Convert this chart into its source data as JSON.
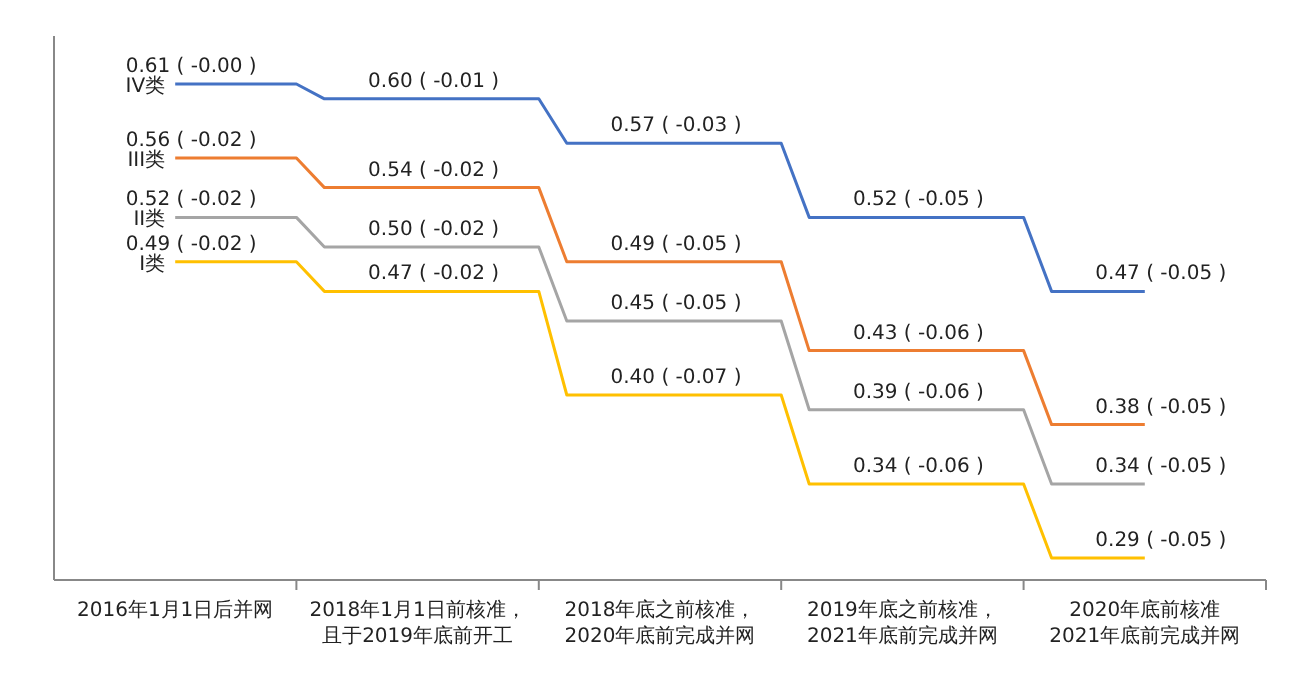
{
  "chart_data": {
    "type": "step",
    "categories": [
      "2016年1月1日后并网",
      "2018年1月1日前核准，且于2019年底前开工",
      "2018年底之前核准，2020年底前完成并网",
      "2019年底之前核准，2021年底前完成并网",
      "2020年底前核准2021年底前完成并网"
    ],
    "series": [
      {
        "name": "IV类",
        "color": "#4472c4",
        "values": [
          0.61,
          0.6,
          0.57,
          0.52,
          0.47
        ],
        "value_labels": [
          "0.61 ( -0.00 )",
          "0.60 ( -0.01 )",
          "0.57 ( -0.03 )",
          "0.52 ( -0.05 )",
          "0.47 ( -0.05 )"
        ]
      },
      {
        "name": "III类",
        "color": "#ed7d31",
        "values": [
          0.56,
          0.54,
          0.49,
          0.43,
          0.38
        ],
        "value_labels": [
          "0.56 ( -0.02 )",
          "0.54 ( -0.02 )",
          "0.49 ( -0.05 )",
          "0.43 ( -0.06 )",
          "0.38 ( -0.05 )"
        ]
      },
      {
        "name": "II类",
        "color": "#a5a5a5",
        "values": [
          0.52,
          0.5,
          0.45,
          0.39,
          0.34
        ],
        "value_labels": [
          "0.52 ( -0.02 )",
          "0.50 ( -0.02 )",
          "0.45 ( -0.05 )",
          "0.39 ( -0.06 )",
          "0.34 ( -0.05 )"
        ]
      },
      {
        "name": "I类",
        "color": "#ffc000",
        "values": [
          0.49,
          0.47,
          0.4,
          0.34,
          0.29
        ],
        "value_labels": [
          "0.49 ( -0.02 )",
          "0.47 ( -0.02 )",
          "0.40 ( -0.07 )",
          "0.34 ( -0.06 )",
          "0.29 ( -0.05 )"
        ]
      }
    ],
    "tick_labels": "x"
  }
}
